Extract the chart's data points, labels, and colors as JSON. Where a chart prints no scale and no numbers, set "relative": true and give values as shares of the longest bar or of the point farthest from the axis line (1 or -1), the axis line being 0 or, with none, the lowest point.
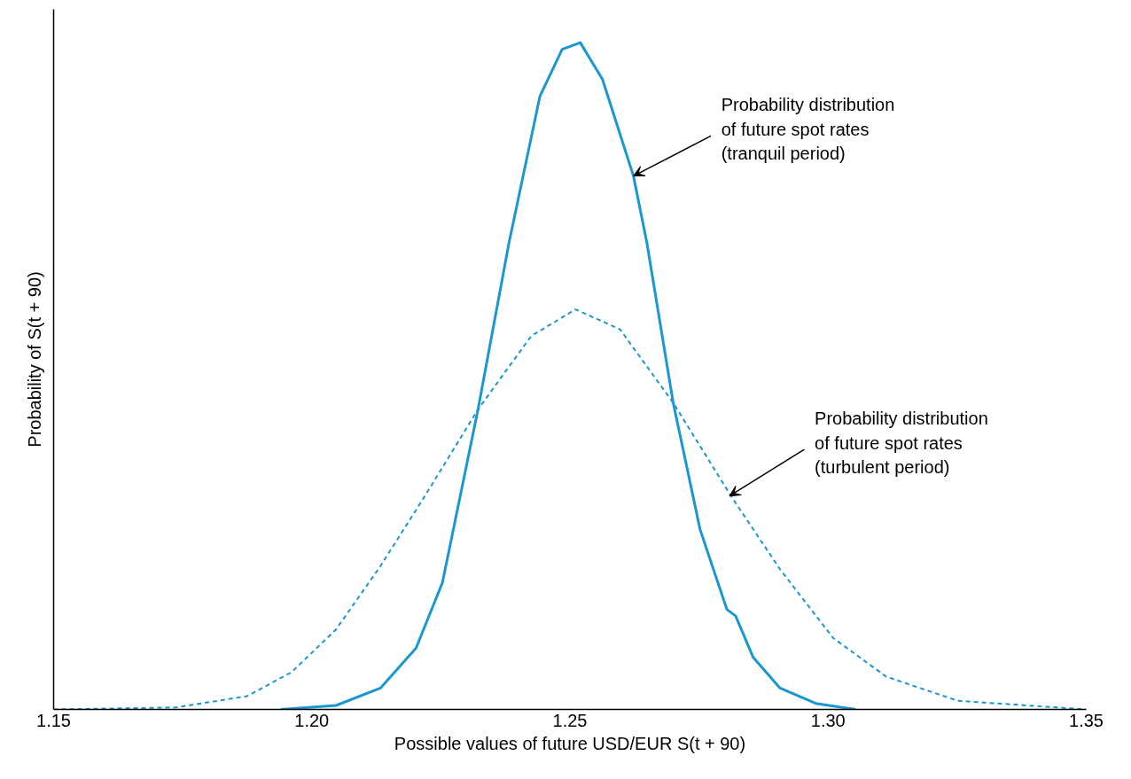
{
  "chart_data": {
    "type": "line",
    "relative": true,
    "xlabel": "Possible values of future USD/EUR S(t + 90)",
    "ylabel": "Probability of S(t + 90)",
    "xlim": [
      1.15,
      1.35
    ],
    "xticks": [
      1.15,
      {
        "value": 1.2,
        "label": "1.20"
      },
      1.25,
      {
        "value": 1.3,
        "label": "1.30"
      },
      1.35
    ],
    "grid": false,
    "marker": "none",
    "series": [
      {
        "color": "#1a96d0",
        "line_style": "solid",
        "x": [
          1.194,
          1.2047,
          1.2133,
          1.2202,
          1.2253,
          1.2322,
          1.2382,
          1.2442,
          1.2485,
          1.252,
          1.2563,
          1.2623,
          1.2649,
          1.27,
          1.2752,
          1.2804,
          1.2821,
          1.2855,
          1.2907,
          1.2976,
          1.3053
        ],
        "values": [
          0,
          0.006,
          0.032,
          0.092,
          0.19,
          0.45,
          0.7,
          0.92,
          0.99,
          1,
          0.945,
          0.8,
          0.7,
          0.46,
          0.27,
          0.15,
          0.14,
          0.078,
          0.032,
          0.009,
          0
        ]
      },
      {
        "color": "#1a96d0",
        "line_style": "dashed",
        "x": [
          1.15,
          1.1737,
          1.1875,
          1.1961,
          1.2047,
          1.2133,
          1.2219,
          1.2322,
          1.2425,
          1.2511,
          1.2597,
          1.27,
          1.2812,
          1.2907,
          1.301,
          1.3113,
          1.3251,
          1.35
        ],
        "values": [
          0,
          0.003,
          0.02,
          0.056,
          0.12,
          0.215,
          0.32,
          0.45,
          0.56,
          0.6,
          0.57,
          0.46,
          0.32,
          0.21,
          0.107,
          0.049,
          0.013,
          0
        ]
      }
    ],
    "annotations": [
      {
        "text": "Probability distribution\nof future spot rates\n(tranquil period)",
        "x": 1.2623,
        "y": 0.8
      },
      {
        "text": "Probability distribution\nof future spot rates\n(turbulent period)",
        "x": 1.2809,
        "y": 0.32
      }
    ]
  }
}
